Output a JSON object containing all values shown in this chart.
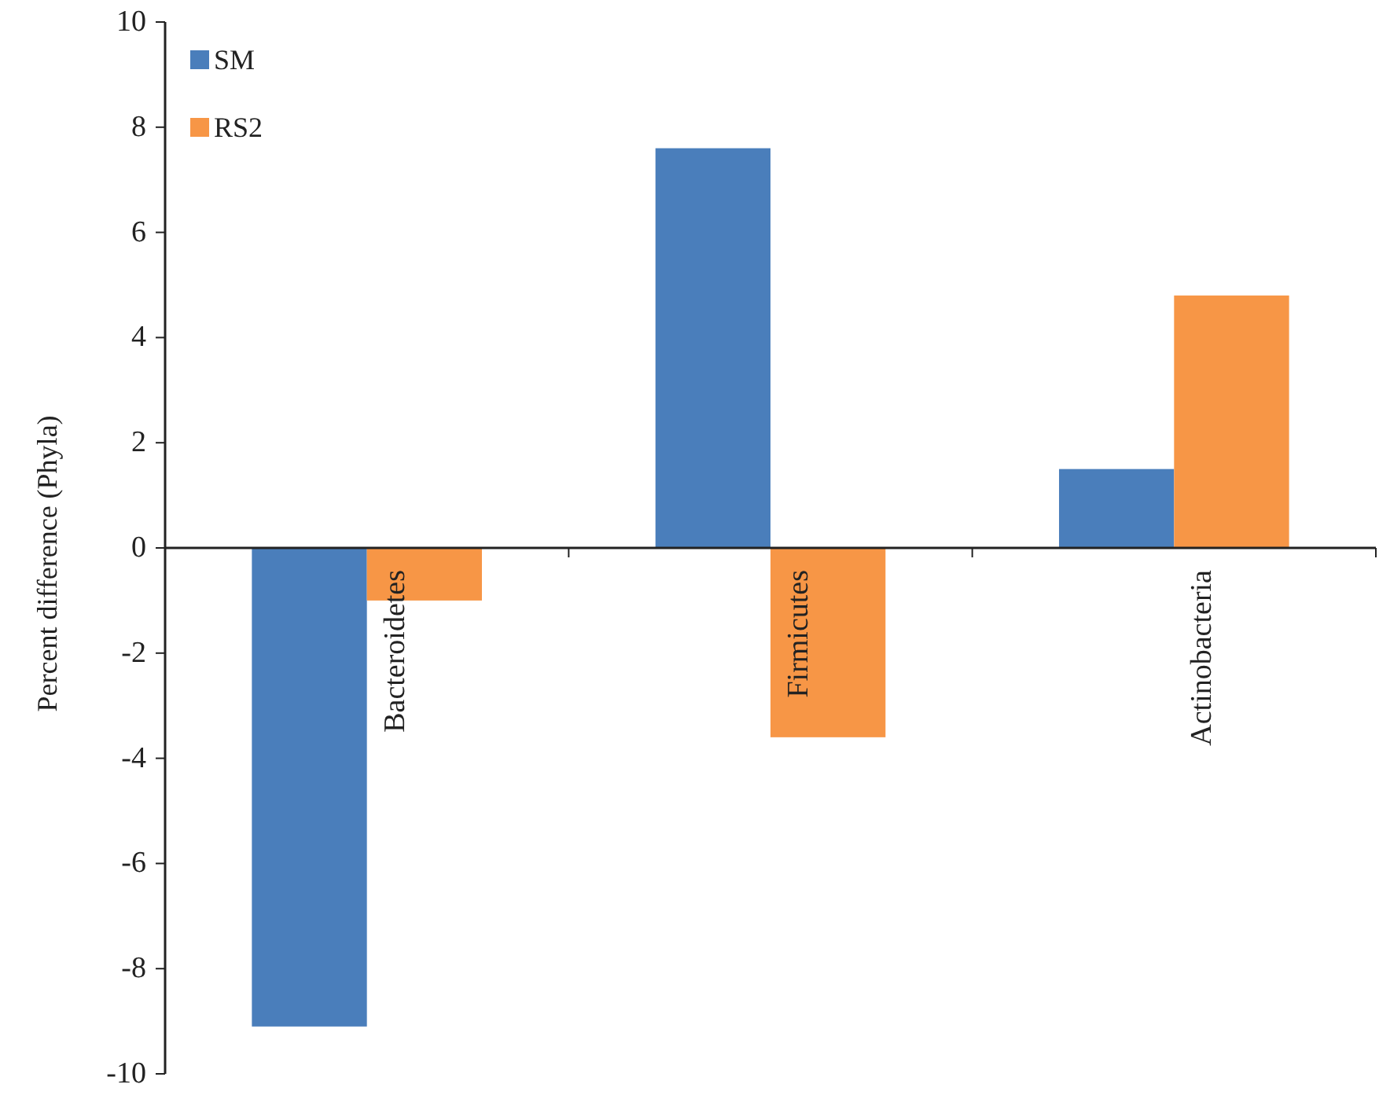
{
  "chart_data": {
    "type": "bar",
    "ylabel": "Percent difference (Phyla)",
    "categories": [
      "Bacteroidetes",
      "Firmicutes",
      "Actinobacteria"
    ],
    "series": [
      {
        "name": "SM",
        "color": "#4a7ebb",
        "values": [
          -9.1,
          7.6,
          1.5
        ]
      },
      {
        "name": "RS2",
        "color": "#f79646",
        "values": [
          -1.0,
          -3.6,
          4.8
        ]
      }
    ],
    "ylim": [
      -10,
      10
    ],
    "yticks": [
      -10,
      -8,
      -6,
      -4,
      -2,
      0,
      2,
      4,
      6,
      8,
      10
    ],
    "legend": "top left"
  }
}
